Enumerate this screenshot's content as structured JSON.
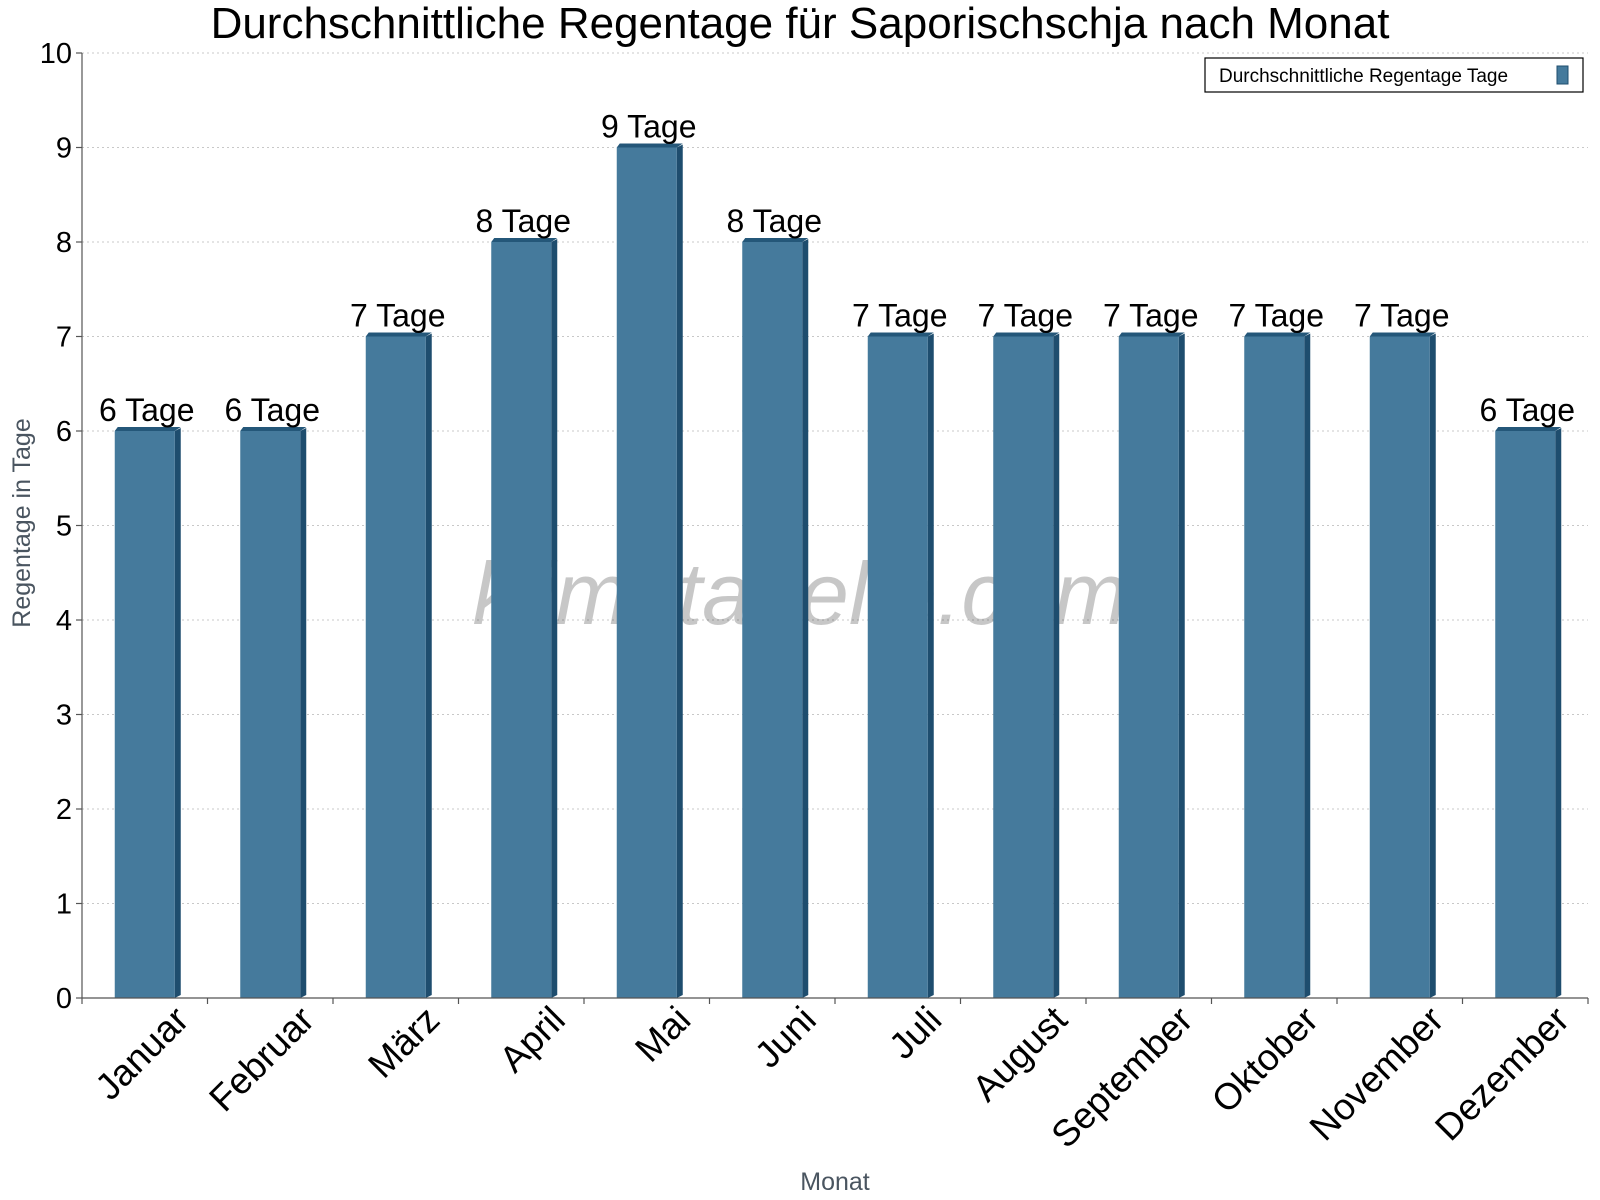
{
  "chart_data": {
    "type": "bar",
    "title": "Durchschnittliche Regentage für Saporischschja nach Monat",
    "xlabel": "Monat",
    "ylabel": "Regentage in Tage",
    "ylim": [
      0,
      10
    ],
    "yticks": [
      "0",
      "1",
      "2",
      "3",
      "4",
      "5",
      "6",
      "7",
      "8",
      "9",
      "10"
    ],
    "grid": true,
    "legend_position": "top-right",
    "categories": [
      "Januar",
      "Februar",
      "März",
      "April",
      "Mai",
      "Juni",
      "Juli",
      "August",
      "September",
      "Oktober",
      "November",
      "Dezember"
    ],
    "series": [
      {
        "name": "Durchschnittliche Regentage Tage",
        "color": "#457a9c",
        "values": [
          6,
          6,
          7,
          8,
          9,
          8,
          7,
          7,
          7,
          7,
          7,
          6
        ],
        "data_labels": [
          "6 Tage",
          "6 Tage",
          "7 Tage",
          "8 Tage",
          "9 Tage",
          "8 Tage",
          "7 Tage",
          "7 Tage",
          "7 Tage",
          "7 Tage",
          "7 Tage",
          "6 Tage"
        ]
      }
    ]
  },
  "watermark": "klimatabelle.com",
  "colors": {
    "bar_face": "#457a9c",
    "bar_side": "#1e4d6e",
    "bar_top": "#245779",
    "grid": "#c8c8c8",
    "axis": "#555555"
  }
}
